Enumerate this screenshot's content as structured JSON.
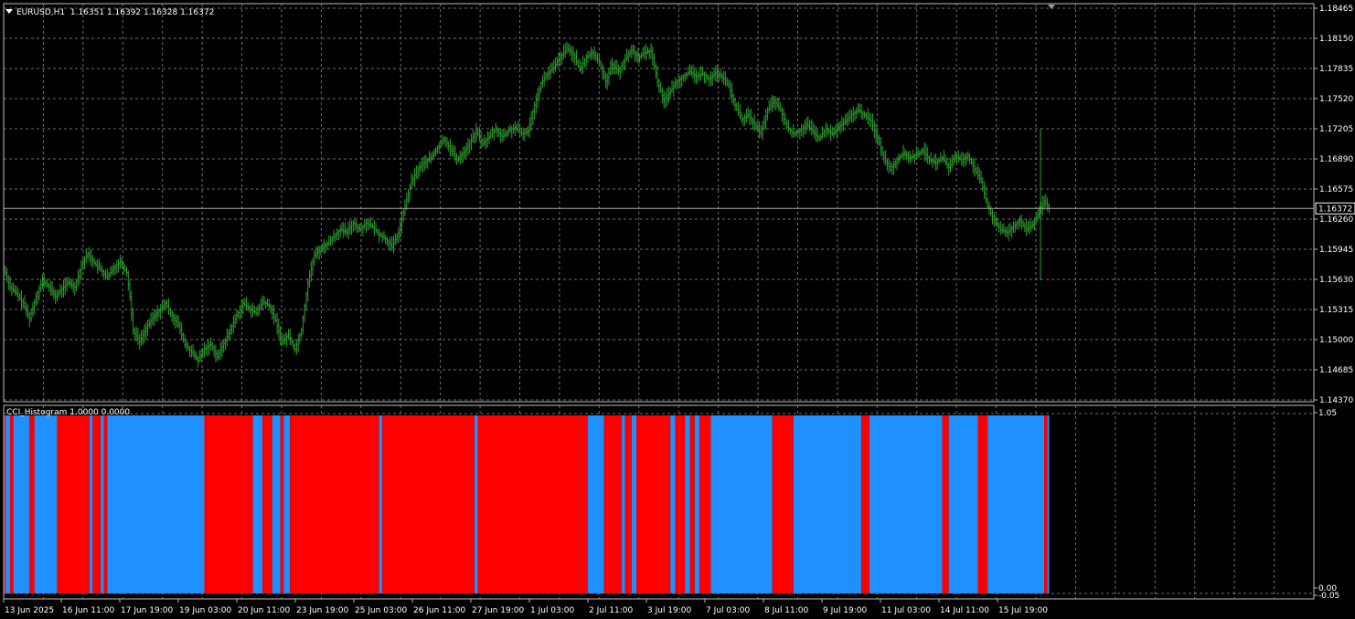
{
  "header": {
    "symbol": "EURUSD,H1",
    "ohlc": "1.16351 1.16392 1.16328 1.16372",
    "indicator": "CCI_Histogram 1.0000 0.0000"
  },
  "colors": {
    "background": "#000000",
    "price_bars": "#2e9e2e",
    "grid": "#6e6e6e",
    "histogram_up": "#1e90ff",
    "histogram_down": "#ff0000",
    "current_price_line": "#a8a8a8"
  },
  "chart_data": [
    {
      "type": "line",
      "style": "hlc-bars",
      "series_name": "EURUSD,H1",
      "ylim": [
        1.1437,
        1.18465
      ],
      "y_tick_labels": [
        "1.18465",
        "1.18150",
        "1.17835",
        "1.17520",
        "1.17205",
        "1.16890",
        "1.16575",
        "1.16260",
        "1.15945",
        "1.15630",
        "1.15315",
        "1.15000",
        "1.14685",
        "1.14370"
      ],
      "current_price": "1.16372",
      "x_tick_labels": [
        "13 Jun 2025",
        "16 Jun 11:00",
        "17 Jun 19:00",
        "19 Jun 03:00",
        "20 Jun 11:00",
        "23 Jun 19:00",
        "25 Jun 03:00",
        "26 Jun 11:00",
        "27 Jun 19:00",
        "1 Jul 03:00",
        "2 Jul 11:00",
        "3 Jul 19:00",
        "7 Jul 03:00",
        "8 Jul 11:00",
        "9 Jul 19:00",
        "11 Jul 03:00",
        "14 Jul 11:00",
        "15 Jul 19:00"
      ],
      "close_path": [
        [
          0,
          1.1575
        ],
        [
          4,
          1.1555
        ],
        [
          8,
          1.1548
        ],
        [
          12,
          1.1538
        ],
        [
          16,
          1.1522
        ],
        [
          20,
          1.1545
        ],
        [
          24,
          1.1562
        ],
        [
          28,
          1.1555
        ],
        [
          32,
          1.1545
        ],
        [
          36,
          1.1553
        ],
        [
          40,
          1.156
        ],
        [
          44,
          1.1555
        ],
        [
          48,
          1.1578
        ],
        [
          52,
          1.159
        ],
        [
          56,
          1.158
        ],
        [
          60,
          1.1573
        ],
        [
          64,
          1.1565
        ],
        [
          68,
          1.1575
        ],
        [
          72,
          1.1582
        ],
        [
          76,
          1.157
        ],
        [
          78,
          1.1545
        ],
        [
          80,
          1.151
        ],
        [
          84,
          1.1498
        ],
        [
          88,
          1.1512
        ],
        [
          92,
          1.1522
        ],
        [
          96,
          1.153
        ],
        [
          100,
          1.1538
        ],
        [
          104,
          1.1525
        ],
        [
          108,
          1.1515
        ],
        [
          112,
          1.1495
        ],
        [
          116,
          1.1487
        ],
        [
          120,
          1.1478
        ],
        [
          124,
          1.149
        ],
        [
          128,
          1.1495
        ],
        [
          132,
          1.1482
        ],
        [
          136,
          1.1496
        ],
        [
          140,
          1.151
        ],
        [
          144,
          1.1525
        ],
        [
          148,
          1.1538
        ],
        [
          152,
          1.1532
        ],
        [
          156,
          1.1528
        ],
        [
          160,
          1.154
        ],
        [
          164,
          1.1535
        ],
        [
          168,
          1.152
        ],
        [
          172,
          1.1497
        ],
        [
          176,
          1.1505
        ],
        [
          180,
          1.149
        ],
        [
          184,
          1.151
        ],
        [
          188,
          1.156
        ],
        [
          192,
          1.1588
        ],
        [
          196,
          1.1595
        ],
        [
          200,
          1.16
        ],
        [
          204,
          1.1608
        ],
        [
          208,
          1.1615
        ],
        [
          212,
          1.1612
        ],
        [
          216,
          1.1622
        ],
        [
          220,
          1.1615
        ],
        [
          224,
          1.1622
        ],
        [
          228,
          1.1618
        ],
        [
          232,
          1.161
        ],
        [
          236,
          1.1605
        ],
        [
          240,
          1.1597
        ],
        [
          244,
          1.1612
        ],
        [
          248,
          1.164
        ],
        [
          252,
          1.1665
        ],
        [
          256,
          1.1678
        ],
        [
          260,
          1.1685
        ],
        [
          264,
          1.169
        ],
        [
          268,
          1.17
        ],
        [
          272,
          1.171
        ],
        [
          276,
          1.17
        ],
        [
          280,
          1.1688
        ],
        [
          284,
          1.1695
        ],
        [
          288,
          1.1705
        ],
        [
          292,
          1.1718
        ],
        [
          296,
          1.1705
        ],
        [
          300,
          1.1712
        ],
        [
          304,
          1.172
        ],
        [
          308,
          1.1712
        ],
        [
          312,
          1.1718
        ],
        [
          316,
          1.1722
        ],
        [
          320,
          1.1715
        ],
        [
          324,
          1.1718
        ],
        [
          328,
          1.1745
        ],
        [
          332,
          1.1768
        ],
        [
          336,
          1.1778
        ],
        [
          340,
          1.1785
        ],
        [
          344,
          1.1795
        ],
        [
          348,
          1.1805
        ],
        [
          352,
          1.1798
        ],
        [
          356,
          1.1782
        ],
        [
          360,
          1.1795
        ],
        [
          364,
          1.18
        ],
        [
          368,
          1.179
        ],
        [
          372,
          1.177
        ],
        [
          376,
          1.1788
        ],
        [
          380,
          1.178
        ],
        [
          384,
          1.1793
        ],
        [
          388,
          1.1803
        ],
        [
          392,
          1.1795
        ],
        [
          396,
          1.18
        ],
        [
          400,
          1.1802
        ],
        [
          404,
          1.177
        ],
        [
          408,
          1.175
        ],
        [
          412,
          1.176
        ],
        [
          416,
          1.177
        ],
        [
          420,
          1.1775
        ],
        [
          424,
          1.178
        ],
        [
          428,
          1.1775
        ],
        [
          432,
          1.1778
        ],
        [
          436,
          1.1772
        ],
        [
          440,
          1.1779
        ],
        [
          444,
          1.1775
        ],
        [
          448,
          1.1765
        ],
        [
          452,
          1.1745
        ],
        [
          456,
          1.173
        ],
        [
          460,
          1.1735
        ],
        [
          464,
          1.1725
        ],
        [
          468,
          1.1715
        ],
        [
          472,
          1.174
        ],
        [
          476,
          1.175
        ],
        [
          480,
          1.174
        ],
        [
          484,
          1.1722
        ],
        [
          488,
          1.1715
        ],
        [
          492,
          1.1718
        ],
        [
          496,
          1.1725
        ],
        [
          500,
          1.1718
        ],
        [
          504,
          1.171
        ],
        [
          508,
          1.172
        ],
        [
          512,
          1.1715
        ],
        [
          516,
          1.1722
        ],
        [
          520,
          1.1728
        ],
        [
          524,
          1.1735
        ],
        [
          528,
          1.174
        ],
        [
          532,
          1.1735
        ],
        [
          536,
          1.1728
        ],
        [
          540,
          1.171
        ],
        [
          544,
          1.169
        ],
        [
          548,
          1.1678
        ],
        [
          552,
          1.1688
        ],
        [
          556,
          1.1695
        ],
        [
          560,
          1.169
        ],
        [
          564,
          1.1693
        ],
        [
          568,
          1.1698
        ],
        [
          572,
          1.1688
        ],
        [
          576,
          1.1685
        ],
        [
          580,
          1.169
        ],
        [
          584,
          1.168
        ],
        [
          588,
          1.1692
        ],
        [
          592,
          1.1688
        ],
        [
          596,
          1.1692
        ],
        [
          600,
          1.1678
        ],
        [
          604,
          1.1665
        ],
        [
          608,
          1.164
        ],
        [
          612,
          1.1625
        ],
        [
          616,
          1.1615
        ],
        [
          620,
          1.1612
        ],
        [
          624,
          1.1618
        ],
        [
          628,
          1.1625
        ],
        [
          632,
          1.1615
        ],
        [
          636,
          1.162
        ],
        [
          640,
          1.1635
        ],
        [
          643,
          1.1645
        ],
        [
          646,
          1.1637
        ]
      ]
    },
    {
      "type": "bar",
      "series_name": "CCI_Histogram",
      "ylim": [
        0,
        1.05
      ],
      "y_tick_labels": [
        "1.05",
        "0.00",
        "-0.05"
      ],
      "x_range": [
        0,
        650
      ],
      "segments": [
        [
          0,
          1,
          1
        ],
        [
          1,
          4,
          0
        ],
        [
          4,
          6,
          1
        ],
        [
          6,
          16,
          0
        ],
        [
          16,
          19,
          1
        ],
        [
          19,
          33,
          0
        ],
        [
          33,
          53,
          1
        ],
        [
          53,
          55,
          0
        ],
        [
          55,
          60,
          1
        ],
        [
          60,
          62,
          0
        ],
        [
          62,
          64,
          1
        ],
        [
          64,
          124,
          0
        ],
        [
          124,
          154,
          1
        ],
        [
          154,
          160,
          0
        ],
        [
          160,
          166,
          1
        ],
        [
          166,
          171,
          0
        ],
        [
          171,
          173,
          1
        ],
        [
          173,
          177,
          0
        ],
        [
          177,
          232,
          1
        ],
        [
          232,
          234,
          0
        ],
        [
          234,
          291,
          1
        ],
        [
          291,
          293,
          0
        ],
        [
          293,
          361,
          1
        ],
        [
          361,
          371,
          0
        ],
        [
          371,
          382,
          1
        ],
        [
          382,
          384,
          0
        ],
        [
          384,
          388,
          1
        ],
        [
          388,
          391,
          0
        ],
        [
          391,
          412,
          1
        ],
        [
          412,
          415,
          0
        ],
        [
          415,
          421,
          1
        ],
        [
          421,
          424,
          0
        ],
        [
          424,
          427,
          1
        ],
        [
          427,
          430,
          0
        ],
        [
          430,
          437,
          1
        ],
        [
          437,
          475,
          0
        ],
        [
          475,
          488,
          1
        ],
        [
          488,
          530,
          0
        ],
        [
          530,
          535,
          1
        ],
        [
          535,
          580,
          0
        ],
        [
          580,
          584,
          1
        ],
        [
          584,
          602,
          0
        ],
        [
          602,
          608,
          1
        ],
        [
          608,
          643,
          0
        ],
        [
          643,
          645,
          1
        ],
        [
          645,
          646,
          0
        ]
      ]
    }
  ]
}
